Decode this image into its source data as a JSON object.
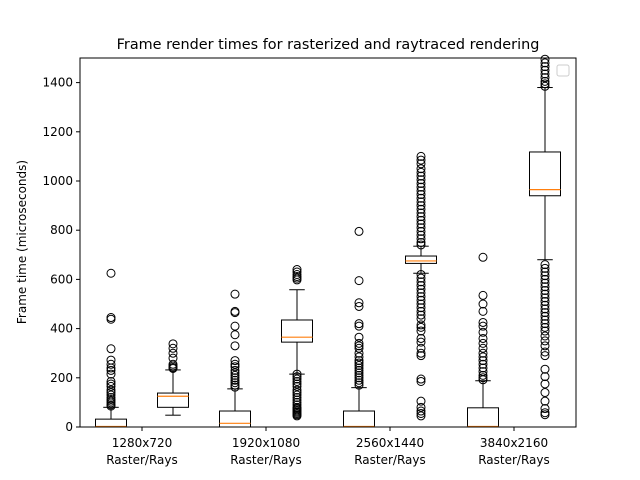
{
  "chart_data": {
    "type": "box",
    "title": "Frame render times for rasterized and raytraced rendering",
    "xlabel": "",
    "ylabel": "Frame time (microseconds)",
    "ylim": [
      0,
      1500
    ],
    "yticks": [
      0,
      200,
      400,
      600,
      800,
      1000,
      1200,
      1400
    ],
    "categories": [
      {
        "line1": "1280x720",
        "line2": "Raster/Rays"
      },
      {
        "line1": "1920x1080",
        "line2": "Raster/Rays"
      },
      {
        "line1": "2560x1440",
        "line2": "Raster/Rays"
      },
      {
        "line1": "3840x2160",
        "line2": "Raster/Rays"
      }
    ],
    "legend": {
      "placement": "top-right",
      "entries": []
    },
    "grid": false,
    "boxes": [
      {
        "resolution": "1280x720",
        "method": "Raster",
        "whislo": 0,
        "q1": 0,
        "median": 2,
        "q3": 32,
        "whishi": 80,
        "fliers": [
          625,
          445,
          438,
          318,
          272,
          255,
          240,
          230,
          215,
          185,
          175,
          165,
          150,
          140,
          130,
          120,
          112,
          105,
          98,
          90,
          85
        ]
      },
      {
        "resolution": "1280x720",
        "method": "Rays",
        "whislo": 48,
        "q1": 80,
        "median": 125,
        "q3": 138,
        "whishi": 232,
        "fliers": [
          338,
          320,
          300,
          280,
          255,
          248,
          242,
          238
        ]
      },
      {
        "resolution": "1920x1080",
        "method": "Raster",
        "whislo": 0,
        "q1": 0,
        "median": 15,
        "q3": 65,
        "whishi": 155,
        "fliers": [
          540,
          470,
          465,
          410,
          375,
          330,
          270,
          255,
          245,
          230,
          220,
          210,
          200,
          190,
          180,
          170,
          162
        ]
      },
      {
        "resolution": "1920x1080",
        "method": "Rays",
        "whislo": 215,
        "q1": 345,
        "median": 365,
        "q3": 435,
        "whishi": 558,
        "fliers": [
          640,
          630,
          620,
          612,
          605,
          598,
          215,
          205,
          195,
          185,
          175,
          165,
          150,
          140,
          130,
          120,
          110,
          100,
          90,
          80,
          75,
          70,
          65,
          60,
          55,
          50,
          45
        ]
      },
      {
        "resolution": "2560x1440",
        "method": "Raster",
        "whislo": 0,
        "q1": 0,
        "median": 2,
        "q3": 65,
        "whishi": 160,
        "fliers": [
          795,
          595,
          505,
          490,
          420,
          410,
          365,
          340,
          330,
          320,
          300,
          285,
          270,
          260,
          250,
          240,
          230,
          220,
          210,
          200,
          190,
          180,
          170
        ]
      },
      {
        "resolution": "2560x1440",
        "method": "Rays",
        "whislo": 625,
        "q1": 665,
        "median": 675,
        "q3": 695,
        "whishi": 735,
        "fliers": [
          1100,
          1085,
          1070,
          1050,
          1035,
          1020,
          1005,
          990,
          975,
          960,
          945,
          930,
          915,
          900,
          885,
          870,
          855,
          840,
          825,
          810,
          795,
          780,
          765,
          750,
          740,
          620,
          605,
          590,
          575,
          560,
          545,
          530,
          515,
          500,
          485,
          470,
          455,
          440,
          415,
          405,
          390,
          360,
          345,
          320,
          300,
          290,
          195,
          185,
          105,
          80,
          65,
          55,
          45
        ]
      },
      {
        "resolution": "3840x2160",
        "method": "Raster",
        "whislo": 0,
        "q1": 0,
        "median": 2,
        "q3": 78,
        "whishi": 188,
        "fliers": [
          690,
          535,
          500,
          470,
          425,
          410,
          385,
          360,
          340,
          320,
          300,
          285,
          270,
          255,
          240,
          225,
          210,
          200,
          192
        ]
      },
      {
        "resolution": "3840x2160",
        "method": "Rays",
        "whislo": 680,
        "q1": 940,
        "median": 965,
        "q3": 1118,
        "whishi": 1380,
        "fliers": [
          1495,
          1480,
          1465,
          1450,
          1435,
          1420,
          1405,
          1395,
          1385,
          660,
          645,
          630,
          615,
          600,
          585,
          570,
          555,
          540,
          525,
          510,
          495,
          480,
          465,
          450,
          435,
          420,
          405,
          390,
          370,
          350,
          330,
          305,
          290,
          235,
          205,
          175,
          140,
          105,
          75,
          58,
          50
        ]
      }
    ]
  }
}
